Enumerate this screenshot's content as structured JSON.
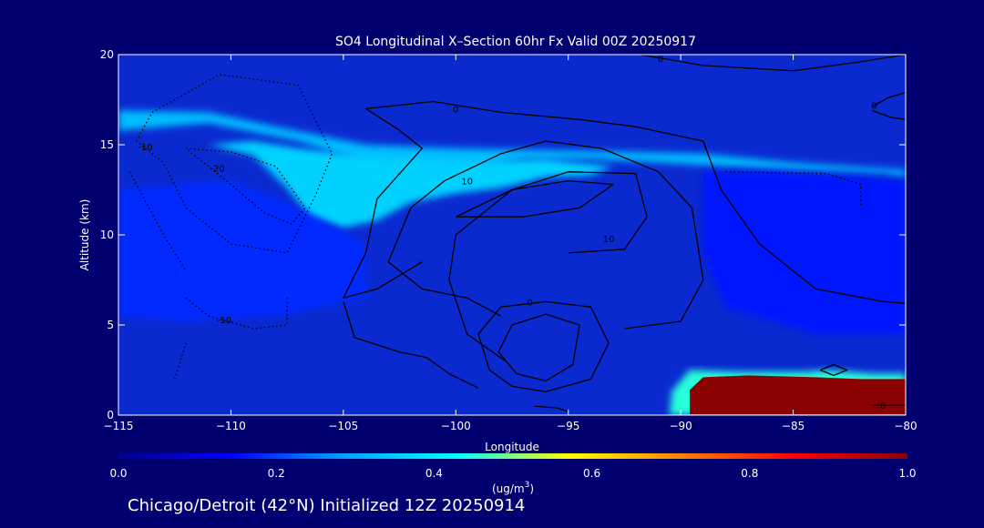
{
  "colors": {
    "background": "#000070",
    "field_base": "#0a2ad0",
    "contour": "#000000",
    "text": "#ffffff",
    "aerosol_max": "#8a0000"
  },
  "chart_data": {
    "type": "heatmap",
    "title": "SO4 Longitudinal X–Section 60hr  Fx Valid 00Z 20250917",
    "xlabel": "Longitude",
    "ylabel": "Altitude (km)",
    "xlim": [
      -115,
      -80
    ],
    "ylim": [
      0,
      20
    ],
    "x_ticks": [
      -115,
      -110,
      -105,
      -100,
      -95,
      -90,
      -85,
      -80
    ],
    "x_tick_labels": [
      "−115",
      "−110",
      "−105",
      "−100",
      "−95",
      "−90",
      "−85",
      "−80"
    ],
    "y_ticks": [
      0,
      5,
      10,
      15,
      20
    ],
    "y_tick_labels": [
      "0",
      "5",
      "10",
      "15",
      "20"
    ],
    "colorbar": {
      "min": 0.0,
      "max": 1.0,
      "ticks": [
        0.0,
        0.2,
        0.4,
        0.6,
        0.8,
        1.0
      ],
      "tick_labels": [
        "0.0",
        "0.2",
        "0.4",
        "0.6",
        "0.8",
        "1.0"
      ],
      "units_label": "(ug/m",
      "units_superscript": "3",
      "units_suffix": ")",
      "stops": [
        "#000090",
        "#0000ff",
        "#00a0ff",
        "#00ffff",
        "#ffff00",
        "#ff8000",
        "#ff0000",
        "#8b0000"
      ]
    },
    "shaded_regions": [
      {
        "name": "upper-bright-band",
        "value": 0.33,
        "points": [
          [
            -115,
            15.8
          ],
          [
            -111,
            16.2
          ],
          [
            -107,
            15.2
          ],
          [
            -104,
            14.0
          ],
          [
            -100,
            13.6
          ],
          [
            -97,
            14.2
          ],
          [
            -94,
            14.2
          ],
          [
            -91,
            14.0
          ],
          [
            -88,
            13.8
          ],
          [
            -85,
            13.6
          ],
          [
            -81,
            13.4
          ],
          [
            -80,
            13.2
          ],
          [
            -80,
            13.6
          ],
          [
            -85,
            14.0
          ],
          [
            -89,
            14.5
          ],
          [
            -92,
            14.6
          ],
          [
            -96,
            14.7
          ],
          [
            -100,
            14.8
          ],
          [
            -104,
            15.0
          ],
          [
            -108,
            16.0
          ],
          [
            -111,
            16.8
          ],
          [
            -115,
            16.9
          ]
        ]
      },
      {
        "name": "upper-cyan-plume",
        "value": 0.36,
        "points": [
          [
            -111,
            15.0
          ],
          [
            -109,
            14.4
          ],
          [
            -107.5,
            12.6
          ],
          [
            -106.5,
            11.0
          ],
          [
            -105,
            10.4
          ],
          [
            -103.5,
            10.8
          ],
          [
            -102,
            11.8
          ],
          [
            -100,
            12.3
          ],
          [
            -98,
            12.6
          ],
          [
            -96,
            13.2
          ],
          [
            -94,
            13.3
          ],
          [
            -93,
            13.8
          ],
          [
            -96,
            14.2
          ],
          [
            -100,
            14.1
          ],
          [
            -104,
            14.4
          ],
          [
            -107,
            14.8
          ],
          [
            -109,
            15.2
          ]
        ]
      },
      {
        "name": "mid-lighter-blue",
        "value": 0.18,
        "points": [
          [
            -115,
            12.5
          ],
          [
            -110,
            13.0
          ],
          [
            -107,
            11.5
          ],
          [
            -104,
            9.5
          ],
          [
            -104,
            6.5
          ],
          [
            -108,
            5.5
          ],
          [
            -112,
            5.2
          ],
          [
            -115,
            5.5
          ]
        ]
      },
      {
        "name": "right-mid-lighter",
        "value": 0.16,
        "points": [
          [
            -89,
            13.5
          ],
          [
            -86,
            13.5
          ],
          [
            -82,
            13.2
          ],
          [
            -80,
            13.0
          ],
          [
            -80,
            4.5
          ],
          [
            -84,
            4.5
          ],
          [
            -88,
            6.0
          ],
          [
            -89,
            9.0
          ]
        ]
      },
      {
        "name": "low-plume-outer",
        "value": 0.45,
        "points": [
          [
            -90.5,
            0
          ],
          [
            -90.4,
            1.3
          ],
          [
            -89.6,
            2.5
          ],
          [
            -87.5,
            2.4
          ],
          [
            -84.5,
            2.4
          ],
          [
            -83.5,
            2.5
          ],
          [
            -81.5,
            2.3
          ],
          [
            -80,
            2.3
          ],
          [
            -80,
            0
          ]
        ]
      },
      {
        "name": "low-plume-core",
        "value": 1.0,
        "points": [
          [
            -89.6,
            0.05
          ],
          [
            -89.6,
            1.4
          ],
          [
            -89,
            2.1
          ],
          [
            -87,
            2.2
          ],
          [
            -84,
            2.1
          ],
          [
            -82,
            2.0
          ],
          [
            -80,
            2.0
          ],
          [
            -80,
            0.05
          ]
        ]
      }
    ],
    "contours": [
      {
        "label": "0",
        "style": "solid",
        "label_at": [
          -100,
          17.0
        ],
        "points": [
          [
            -101.5,
            8.5
          ],
          [
            -103.5,
            7.0
          ],
          [
            -105.0,
            6.5
          ],
          [
            -104.0,
            9.0
          ],
          [
            -103.5,
            12.0
          ],
          [
            -101.5,
            14.8
          ],
          [
            -102.5,
            15.8
          ],
          [
            -104.0,
            17.0
          ],
          [
            -101.0,
            17.4
          ],
          [
            -98.0,
            16.8
          ],
          [
            -94.5,
            16.4
          ],
          [
            -92.0,
            16.0
          ],
          [
            -89.0,
            15.2
          ],
          [
            -88.2,
            12.5
          ],
          [
            -86.5,
            9.5
          ],
          [
            -84.0,
            7.0
          ],
          [
            -81.0,
            6.3
          ],
          [
            -80.0,
            6.2
          ]
        ]
      },
      {
        "label": "10",
        "style": "solid",
        "label_at": [
          -99.5,
          13.0
        ],
        "points": [
          [
            -98.0,
            5.5
          ],
          [
            -99.5,
            6.5
          ],
          [
            -101.5,
            7.0
          ],
          [
            -103.0,
            8.5
          ],
          [
            -102.0,
            11.5
          ],
          [
            -100.5,
            13.0
          ],
          [
            -98.0,
            14.5
          ],
          [
            -96.0,
            15.2
          ],
          [
            -93.5,
            14.8
          ],
          [
            -91.0,
            13.5
          ],
          [
            -89.5,
            11.5
          ],
          [
            -89.0,
            7.5
          ],
          [
            -90.0,
            5.2
          ],
          [
            -92.5,
            4.8
          ]
        ]
      },
      {
        "label": "10",
        "style": "solid",
        "label_at": [
          -93.2,
          9.8
        ],
        "points": [
          [
            -97.8,
            3.0
          ],
          [
            -99.5,
            4.5
          ],
          [
            -100.3,
            7.5
          ],
          [
            -100.0,
            10.0
          ],
          [
            -97.5,
            12.5
          ],
          [
            -95.0,
            13.5
          ],
          [
            -92.0,
            13.4
          ],
          [
            -91.5,
            11.0
          ],
          [
            -92.5,
            9.2
          ],
          [
            -95.0,
            9.0
          ]
        ]
      },
      {
        "label": "",
        "style": "solid",
        "points": [
          [
            -100.0,
            11.0
          ],
          [
            -97.5,
            12.5
          ],
          [
            -95.0,
            13.0
          ],
          [
            -93.0,
            12.8
          ],
          [
            -94.5,
            11.5
          ],
          [
            -97.0,
            11.0
          ],
          [
            -100.0,
            11.0
          ]
        ]
      },
      {
        "label": "0",
        "style": "solid",
        "label_at": [
          -96.7,
          6.3
        ],
        "points": [
          [
            -97.5,
            1.6
          ],
          [
            -98.5,
            2.5
          ],
          [
            -99.0,
            4.5
          ],
          [
            -98.0,
            6.0
          ],
          [
            -96.0,
            6.3
          ],
          [
            -94.0,
            6.0
          ],
          [
            -93.2,
            4.0
          ],
          [
            -94.0,
            2.0
          ],
          [
            -96.0,
            1.3
          ],
          [
            -97.5,
            1.6
          ]
        ]
      },
      {
        "label": "",
        "style": "solid",
        "points": [
          [
            -97.3,
            2.3
          ],
          [
            -98.1,
            3.5
          ],
          [
            -97.5,
            5.0
          ],
          [
            -96.0,
            5.6
          ],
          [
            -94.5,
            5.0
          ],
          [
            -94.8,
            2.8
          ],
          [
            -96.0,
            1.9
          ],
          [
            -97.3,
            2.3
          ]
        ]
      },
      {
        "label": "",
        "style": "solid",
        "points": [
          [
            -105.0,
            6.3
          ],
          [
            -104.5,
            4.3
          ],
          [
            -102.5,
            3.5
          ],
          [
            -101.3,
            3.2
          ],
          [
            -100.3,
            2.3
          ],
          [
            -99.0,
            1.5
          ]
        ]
      },
      {
        "label": "0",
        "style": "solid",
        "label_at": [
          -90.9,
          19.8
        ],
        "points": [
          [
            -91.8,
            20.0
          ],
          [
            -89.0,
            19.4
          ],
          [
            -85.0,
            19.1
          ],
          [
            -82.0,
            19.6
          ],
          [
            -80.0,
            20.0
          ]
        ]
      },
      {
        "label": "0",
        "style": "solid",
        "label_at": [
          -81.4,
          17.2
        ],
        "points": [
          [
            -81.5,
            17.1
          ],
          [
            -80.8,
            17.6
          ],
          [
            -80.0,
            17.9
          ]
        ]
      },
      {
        "label": "",
        "style": "solid",
        "points": [
          [
            -81.5,
            16.9
          ],
          [
            -80.6,
            16.5
          ],
          [
            -80.0,
            16.4
          ]
        ]
      },
      {
        "label": "",
        "style": "solid",
        "points": [
          [
            -83.8,
            2.5
          ],
          [
            -83.2,
            2.8
          ],
          [
            -82.6,
            2.5
          ],
          [
            -83.2,
            2.2
          ],
          [
            -83.8,
            2.5
          ]
        ]
      },
      {
        "label": "0",
        "style": "solid",
        "label_at": [
          -81.0,
          0.55
        ],
        "points": [
          [
            -81.5,
            0.55
          ],
          [
            -80.0,
            0.55
          ]
        ]
      },
      {
        "label": "",
        "style": "solid",
        "points": [
          [
            -96.5,
            0.5
          ],
          [
            -95.5,
            0.4
          ],
          [
            -95.0,
            0.2
          ]
        ]
      },
      {
        "label": "-10",
        "style": "dotted",
        "label_at": [
          -113.8,
          14.9
        ],
        "points": [
          [
            -114.2,
            15.2
          ],
          [
            -113.5,
            16.8
          ],
          [
            -110.5,
            18.9
          ],
          [
            -107.0,
            18.3
          ],
          [
            -105.5,
            14.5
          ],
          [
            -106.2,
            12.3
          ],
          [
            -107.5,
            9.0
          ],
          [
            -110.0,
            9.5
          ],
          [
            -112.0,
            11.5
          ],
          [
            -113.0,
            14.0
          ],
          [
            -114.2,
            15.2
          ]
        ]
      },
      {
        "label": "-20",
        "style": "dotted",
        "label_at": [
          -110.6,
          13.7
        ],
        "points": [
          [
            -112.0,
            14.8
          ],
          [
            -110.0,
            14.6
          ],
          [
            -108.0,
            13.8
          ],
          [
            -106.7,
            11.5
          ],
          [
            -107.3,
            10.6
          ],
          [
            -108.5,
            11.2
          ],
          [
            -110.0,
            12.8
          ],
          [
            -112.0,
            14.8
          ]
        ]
      },
      {
        "label": "",
        "style": "dotted",
        "points": [
          [
            -114.5,
            13.5
          ],
          [
            -113.0,
            10.0
          ],
          [
            -112.0,
            8.0
          ]
        ]
      },
      {
        "label": "-10",
        "style": "dotted",
        "label_at": [
          -110.3,
          5.3
        ],
        "points": [
          [
            -112.0,
            6.5
          ],
          [
            -111.0,
            5.5
          ],
          [
            -109.0,
            4.8
          ],
          [
            -107.5,
            5.0
          ],
          [
            -107.5,
            6.5
          ]
        ]
      },
      {
        "label": "",
        "style": "dotted",
        "points": [
          [
            -112.5,
            2.0
          ],
          [
            -112.0,
            4.0
          ]
        ]
      },
      {
        "label": "",
        "style": "dotted",
        "points": [
          [
            -88.0,
            13.5
          ],
          [
            -83.5,
            13.4
          ],
          [
            -82.0,
            12.8
          ],
          [
            -82.0,
            11.5
          ]
        ]
      }
    ]
  },
  "footer": {
    "caption": "Chicago/Detroit (42°N) Initialized 12Z 20250914"
  }
}
